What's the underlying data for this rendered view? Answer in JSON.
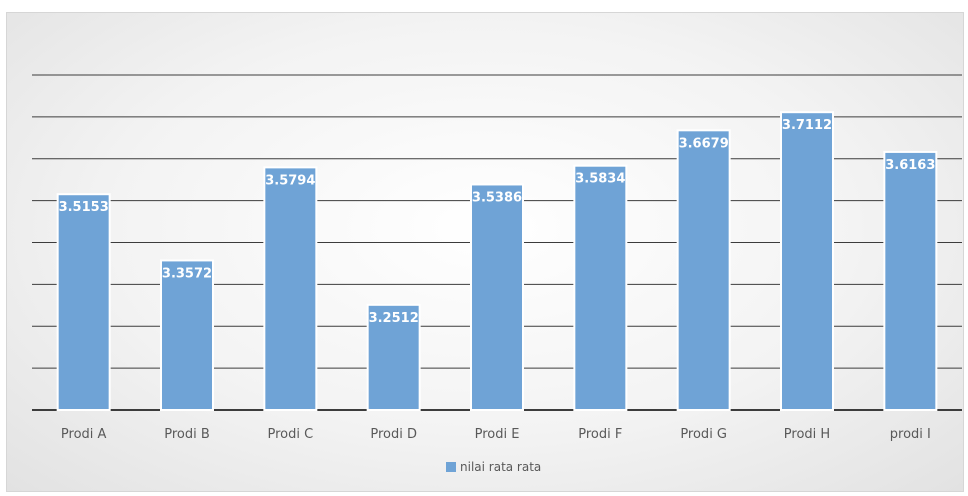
{
  "chart_data": {
    "type": "bar",
    "title": "",
    "xlabel": "",
    "ylabel": "",
    "categories": [
      "Prodi A",
      "Prodi B",
      "Prodi C",
      "Prodi D",
      "Prodi E",
      "Prodi F",
      "Prodi G",
      "Prodi H",
      "prodi I"
    ],
    "series": [
      {
        "name": "nilai rata rata",
        "values": [
          3.5153,
          3.3572,
          3.5794,
          3.2512,
          3.5386,
          3.5834,
          3.6679,
          3.7112,
          3.6163
        ],
        "labels": [
          "3.5153",
          "3.3572",
          "3.5794",
          "3.2512",
          "3.5386",
          "3.5834",
          "3.6679",
          "3.7112",
          "3.6163"
        ]
      }
    ],
    "ylim": [
      3.0,
      3.8
    ],
    "gridlines": [
      3.1,
      3.2,
      3.3,
      3.4,
      3.5,
      3.6,
      3.7,
      3.8
    ],
    "grid": true,
    "show_y_tick_labels": false,
    "legend_position": "bottom-center",
    "bar_color": "#6fa3d6",
    "bar_label_color": "#ffffff"
  }
}
